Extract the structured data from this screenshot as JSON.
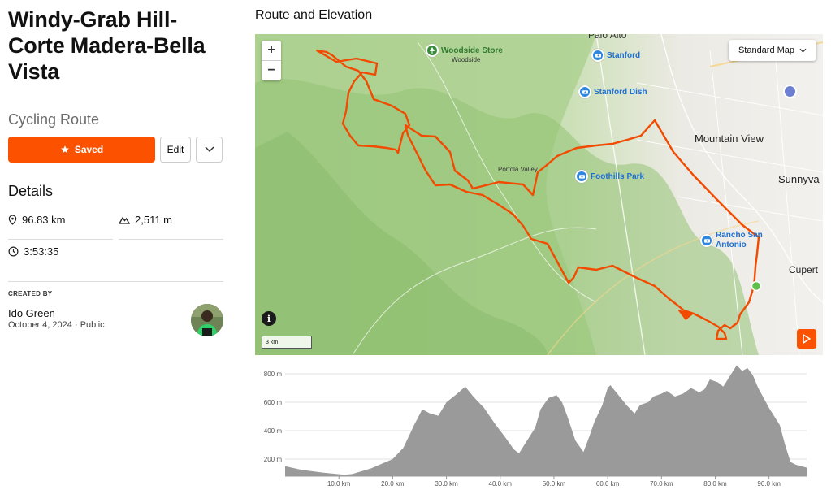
{
  "route": {
    "title": "Windy-Grab Hill-Corte Madera-Bella Vista",
    "type": "Cycling Route"
  },
  "actions": {
    "saved_label": "Saved",
    "edit_label": "Edit"
  },
  "details": {
    "heading": "Details",
    "distance": "96.83 km",
    "elevation_gain": "2,511 m",
    "time": "3:53:35"
  },
  "creator": {
    "label": "CREATED BY",
    "name": "Ido Green",
    "date": "October 4, 2024",
    "visibility": "Public"
  },
  "map": {
    "section_title": "Route and Elevation",
    "map_type": "Standard Map",
    "scale_label": "3 km",
    "accent_color": "#fc5200",
    "places": {
      "palo_alto": "Palo Alto",
      "woodside_store": "Woodside Store",
      "woodside": "Woodside",
      "stanford": "Stanford",
      "stanford_dish": "Stanford Dish",
      "mountain_view": "Mountain View",
      "sunnyvale": "Sunnyva",
      "portola_valley": "Portola Valley",
      "foothills_park": "Foothills Park",
      "rancho_san_antonio": "Rancho San Antonio",
      "cupertino": "Cupert"
    }
  },
  "chart_data": {
    "type": "area",
    "xlabel": "",
    "ylabel": "",
    "x_unit": "km",
    "y_unit": "m",
    "xlim": [
      0,
      97
    ],
    "ylim": [
      80,
      880
    ],
    "x_ticks": [
      "10.0 km",
      "20.0 km",
      "30.0 km",
      "40.0 km",
      "50.0 km",
      "60.0 km",
      "70.0 km",
      "80.0 km",
      "90.0 km"
    ],
    "y_ticks": [
      "200 m",
      "400 m",
      "600 m",
      "800 m"
    ],
    "x": [
      0,
      3,
      7,
      11,
      12.5,
      16,
      20,
      22,
      24,
      25.5,
      27,
      28.5,
      30,
      32,
      33.5,
      35,
      37,
      39,
      41,
      42.5,
      43.5,
      45,
      46.5,
      47.5,
      49,
      50.5,
      51.5,
      52.5,
      54,
      55.5,
      56.5,
      57.5,
      59,
      60,
      60.5,
      62,
      63.5,
      65,
      66,
      67.5,
      68.5,
      70,
      71,
      72.5,
      74,
      75.5,
      77,
      78,
      79,
      80.5,
      81.5,
      83,
      84,
      85,
      86,
      87,
      88,
      90,
      92,
      93,
      94,
      95,
      96,
      97
    ],
    "values": [
      150,
      125,
      105,
      90,
      95,
      135,
      200,
      280,
      440,
      550,
      520,
      505,
      600,
      660,
      710,
      640,
      560,
      450,
      350,
      270,
      240,
      330,
      420,
      550,
      630,
      650,
      600,
      500,
      330,
      250,
      350,
      460,
      580,
      700,
      720,
      650,
      580,
      520,
      580,
      600,
      640,
      660,
      680,
      640,
      660,
      700,
      670,
      690,
      760,
      740,
      710,
      800,
      860,
      820,
      840,
      790,
      700,
      560,
      440,
      300,
      180,
      160,
      150,
      140
    ]
  }
}
